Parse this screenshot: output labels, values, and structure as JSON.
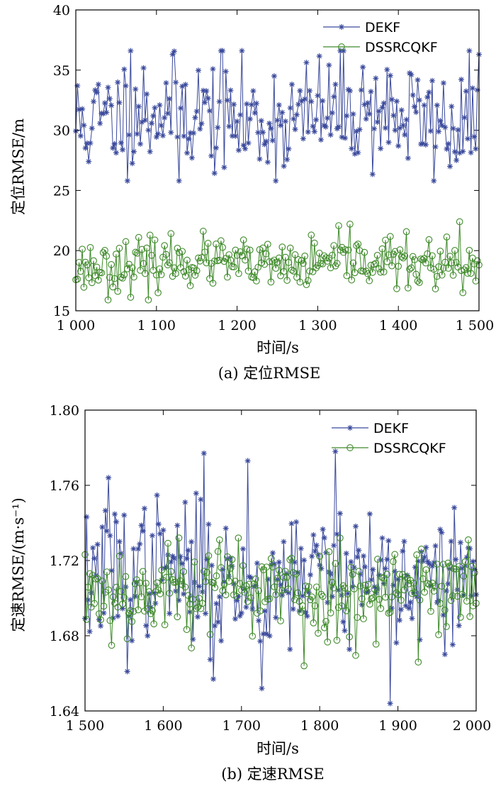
{
  "chart_data": [
    {
      "id": "a",
      "type": "line",
      "caption": "(a) 定位RMSE",
      "xlabel": "时间/s",
      "ylabel": "定位RMSE/m",
      "xlim": [
        1000,
        1500
      ],
      "ylim": [
        15,
        40
      ],
      "xticks": [
        1000,
        1100,
        1200,
        1300,
        1400,
        1500
      ],
      "xtick_labels": [
        "1 000",
        "1 100",
        "1 200",
        "1 300",
        "1 400",
        "1 500"
      ],
      "yticks": [
        15,
        20,
        25,
        30,
        35,
        40
      ],
      "ytick_labels": [
        "15",
        "20",
        "25",
        "30",
        "35",
        "40"
      ],
      "legend_position": "top-right",
      "sampling": {
        "x_start": 1000,
        "x_end": 1500,
        "step": 2
      },
      "series": [
        {
          "name": "DEKF",
          "marker": "star",
          "color": "#3b4a9c",
          "mean": 31.2,
          "amplitude": 2.4,
          "min": 25.8,
          "max": 36.6,
          "seed": 11,
          "peaks": [
            [
              1068,
              36.6
            ],
            [
              1120,
              36.3
            ],
            [
              1182,
              36.6
            ],
            [
              1464,
              27.0
            ],
            [
              1128,
              25.8
            ],
            [
              1500,
              36.3
            ]
          ]
        },
        {
          "name": "DSSRCQKF",
          "marker": "circle",
          "color": "#3f8a2a",
          "mean": 18.9,
          "amplitude": 1.0,
          "min": 15.9,
          "max": 22.4,
          "seed": 23,
          "peaks": [
            [
              1040,
              15.9
            ],
            [
              1090,
              15.9
            ],
            [
              1340,
              22.2
            ],
            [
              1476,
              22.4
            ],
            [
              1480,
              16.5
            ]
          ]
        }
      ]
    },
    {
      "id": "b",
      "type": "line",
      "caption": "(b) 定速RMSE",
      "xlabel": "时间/s",
      "ylabel": "定速RMSE/(m·s⁻¹)",
      "xlim": [
        1500,
        2000
      ],
      "ylim": [
        1.64,
        1.8
      ],
      "xticks": [
        1500,
        1600,
        1700,
        1800,
        1900,
        2000
      ],
      "xtick_labels": [
        "1 500",
        "1 600",
        "1 700",
        "1 800",
        "1 900",
        "2 000"
      ],
      "yticks": [
        1.64,
        1.68,
        1.72,
        1.76,
        1.8
      ],
      "ytick_labels": [
        "1.64",
        "1.68",
        "1.72",
        "1.76",
        "1.80"
      ],
      "legend_position": "top-right",
      "sampling": {
        "x_start": 1500,
        "x_end": 2000,
        "step": 2
      },
      "series": [
        {
          "name": "DEKF",
          "marker": "star",
          "color": "#3b4a9c",
          "mean": 1.712,
          "amplitude": 0.018,
          "min": 1.644,
          "max": 1.778,
          "seed": 37,
          "peaks": [
            [
              1652,
              1.777
            ],
            [
              1708,
              1.773
            ],
            [
              1820,
              1.778
            ],
            [
              1890,
              1.644
            ],
            [
              1555,
              1.661
            ],
            [
              1727,
              1.652
            ],
            [
              1664,
              1.657
            ],
            [
              1530,
              1.764
            ]
          ]
        },
        {
          "name": "DSSRCQKF",
          "marker": "circle",
          "color": "#3f8a2a",
          "mean": 1.705,
          "amplitude": 0.012,
          "min": 1.664,
          "max": 1.732,
          "seed": 53,
          "peaks": [
            [
              1780,
              1.664
            ],
            [
              1926,
              1.666
            ],
            [
              1620,
              1.732
            ],
            [
              1990,
              1.731
            ]
          ]
        }
      ]
    }
  ]
}
